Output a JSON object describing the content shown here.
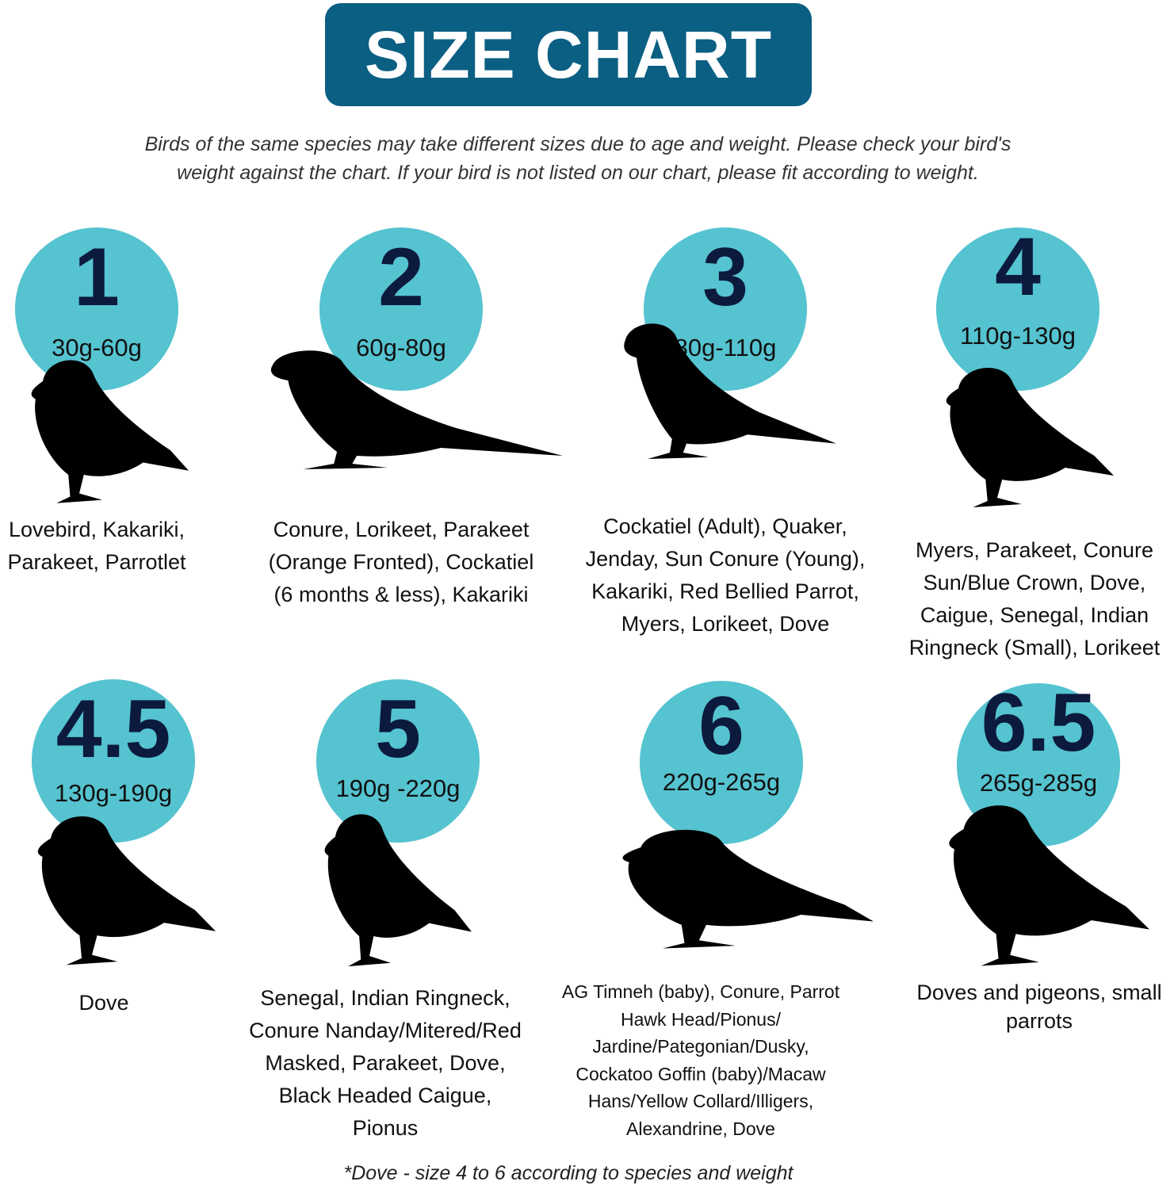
{
  "header": {
    "title": "SIZE CHART",
    "color": "#0b5f82"
  },
  "subtitle": [
    "Birds of the same species may take different sizes due to age and weight. Please check your bird's",
    "weight against the chart. If your bird is not listed on our chart, please fit according to weight."
  ],
  "colors": {
    "circle": "#55c3d0",
    "number": "#0c1a3e",
    "silhouette": "#000000"
  },
  "sizes": [
    {
      "size": "1",
      "weight": "30g-60g",
      "icon": "parrot-silhouette-icon",
      "birds": [
        "Lovebird, Kakariki,",
        "Parakeet, Parrotlet"
      ]
    },
    {
      "size": "2",
      "weight": "60g-80g",
      "icon": "parakeet-silhouette-icon",
      "birds": [
        "Conure, Lorikeet, Parakeet",
        "(Orange Fronted), Cockatiel",
        "(6 months & less), Kakariki"
      ]
    },
    {
      "size": "3",
      "weight": "80g-110g",
      "icon": "cockatiel-silhouette-icon",
      "birds": [
        "Cockatiel (Adult), Quaker,",
        "Jenday, Sun Conure (Young),",
        "Kakariki, Red Bellied Parrot,",
        "Myers, Lorikeet, Dove"
      ]
    },
    {
      "size": "4",
      "weight": "110g-130g",
      "icon": "parrot-silhouette-icon",
      "birds": [
        "Myers, Parakeet, Conure",
        "Sun/Blue Crown, Dove,",
        "Caigue, Senegal, Indian",
        "Ringneck (Small), Lorikeet"
      ]
    },
    {
      "size": "4.5",
      "weight": "130g-190g",
      "icon": "dove-silhouette-icon",
      "birds": [
        "Dove"
      ]
    },
    {
      "size": "5",
      "weight": "190g -220g",
      "icon": "parrot-silhouette-icon",
      "birds": [
        "Senegal, Indian Ringneck,",
        "Conure Nanday/Mitered/Red",
        "Masked, Parakeet, Dove,",
        "Black Headed Caigue,",
        "Pionus"
      ]
    },
    {
      "size": "6",
      "weight": "220g-265g",
      "icon": "parrot-silhouette-icon",
      "birds": [
        "AG Timneh (baby), Conure, Parrot",
        "Hawk Head/Pionus/",
        "Jardine/Pategonian/Dusky,",
        "Cockatoo Goffin (baby)/Macaw",
        "Hans/Yellow Collard/Illigers,",
        "Alexandrine, Dove"
      ]
    },
    {
      "size": "6.5",
      "weight": "265g-285g",
      "icon": "pigeon-silhouette-icon",
      "birds": [
        "Doves and pigeons, small",
        "parrots"
      ]
    }
  ],
  "footnote": "*Dove - size 4 to 6 according to species and weight"
}
